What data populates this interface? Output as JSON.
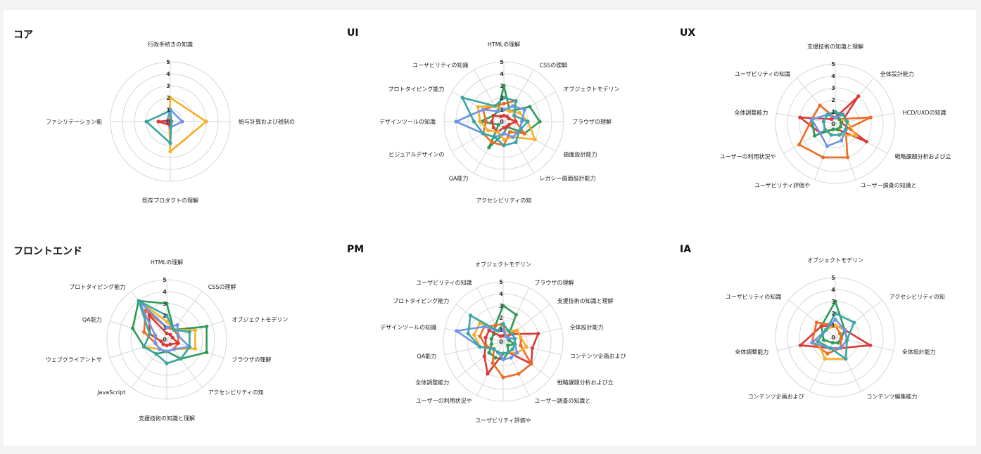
{
  "colors": {
    "yellow": "#f5b027",
    "green": "#2f9a55",
    "red": "#d93a36",
    "teal": "#39a6a4",
    "blue": "#6e94e8",
    "orange": "#ef6a24",
    "grid": "#d6d6d6"
  },
  "chart_data": [
    {
      "type": "radar",
      "title": "コア",
      "axes": [
        "行政手続きの知識",
        "給与計算および税制の",
        "既存プロダクトの理解",
        "ファシリテーション能"
      ],
      "rmax": 5,
      "ticks": [
        "0",
        "1",
        "2",
        "3",
        "4",
        "5"
      ],
      "series": [
        {
          "color": "yellow",
          "values": [
            2.0,
            3.0,
            2.5,
            0.1
          ]
        },
        {
          "color": "blue",
          "values": [
            1.0,
            1.0,
            0.5,
            0.3
          ]
        },
        {
          "color": "red",
          "values": [
            0.1,
            0.1,
            0.3,
            1.0
          ]
        },
        {
          "color": "teal",
          "values": [
            0.9,
            0.1,
            1.8,
            2.0
          ]
        }
      ]
    },
    {
      "type": "radar",
      "title": "UI",
      "axes": [
        "HTMLの理解",
        "CSSの理解",
        "オブジェクトモデリン",
        "ブラウザの理解",
        "画面設計能力",
        "レガシー画面設計能力",
        "アクセシビリティの知",
        "QA能力",
        "ビジュアルデザインの",
        "デザインツールの知識",
        "プロトタイピング能力",
        "ユーザビリティの知識"
      ],
      "rmax": 5,
      "ticks": [
        "0",
        "1",
        "2",
        "3",
        "4",
        "5"
      ],
      "series": [
        {
          "color": "green",
          "values": [
            3.0,
            1.0,
            2.5,
            3.0,
            2.0,
            0.5,
            1.0,
            2.5,
            0.5,
            2.0,
            1.0,
            1.0
          ]
        },
        {
          "color": "orange",
          "values": [
            1.5,
            2.0,
            1.0,
            1.0,
            2.0,
            1.0,
            2.0,
            2.0,
            2.0,
            1.5,
            2.0,
            1.5
          ]
        },
        {
          "color": "red",
          "values": [
            0.5,
            0.5,
            0.5,
            1.0,
            0.5,
            0.5,
            0.5,
            1.0,
            1.0,
            1.0,
            1.0,
            0.5
          ]
        },
        {
          "color": "yellow",
          "values": [
            1.0,
            1.0,
            1.5,
            2.0,
            3.0,
            1.5,
            1.5,
            1.0,
            1.5,
            2.0,
            2.5,
            1.5
          ]
        },
        {
          "color": "blue",
          "values": [
            1.0,
            1.5,
            2.0,
            1.5,
            1.5,
            1.5,
            1.0,
            1.5,
            2.0,
            4.0,
            2.0,
            1.0
          ]
        },
        {
          "color": "teal",
          "values": [
            2.0,
            2.0,
            1.0,
            2.0,
            1.5,
            2.0,
            2.0,
            1.5,
            2.0,
            2.5,
            4.0,
            1.5
          ]
        }
      ]
    },
    {
      "type": "radar",
      "title": "UX",
      "axes": [
        "支援技術の知識と理解",
        "全体設計能力",
        "HCD/UXDの知識",
        "戦略課題分析および立",
        "ユーザー調査の知識と",
        "ユーザビリティ評価や",
        "ユーザーの利用状況や",
        "全体調整能力",
        "ユーザビリティの知識"
      ],
      "rmax": 5,
      "ticks": [
        "0",
        "1",
        "2",
        "3",
        "4",
        "5"
      ],
      "series": [
        {
          "color": "red",
          "values": [
            0.5,
            3.0,
            0.5,
            3.0,
            0.5,
            0.5,
            1.5,
            3.0,
            0.5
          ]
        },
        {
          "color": "orange",
          "values": [
            0.5,
            0.5,
            3.0,
            1.0,
            3.0,
            3.0,
            3.5,
            2.0,
            2.0
          ]
        },
        {
          "color": "yellow",
          "values": [
            1.0,
            0.5,
            1.0,
            2.0,
            1.0,
            1.0,
            1.0,
            1.0,
            1.0
          ]
        },
        {
          "color": "green",
          "values": [
            1.0,
            0.5,
            0.5,
            0.5,
            0.5,
            0.5,
            2.0,
            2.0,
            1.0
          ]
        },
        {
          "color": "blue",
          "values": [
            0.5,
            1.0,
            1.0,
            1.0,
            1.5,
            2.0,
            1.5,
            2.0,
            1.0
          ]
        },
        {
          "color": "teal",
          "values": [
            1.0,
            1.0,
            1.0,
            1.0,
            1.0,
            1.0,
            1.0,
            1.0,
            1.0
          ]
        }
      ]
    },
    {
      "type": "radar",
      "title": "フロントエンド",
      "axes": [
        "HTMLの理解",
        "CSSの理解",
        "オブジェクトモデリン",
        "ブラウザの理解",
        "アクセシビリティの知",
        "支援技術の知識と理解",
        "JavaScript",
        "ウェブクライアントサ",
        "QA能力",
        "プロトタイピング能力"
      ],
      "rmax": 5,
      "ticks": [
        "0",
        "1",
        "2",
        "3",
        "4",
        "5"
      ],
      "series": [
        {
          "color": "green",
          "values": [
            3.0,
            1.0,
            3.5,
            3.5,
            2.0,
            1.0,
            1.5,
            2.0,
            3.0,
            4.0
          ]
        },
        {
          "color": "yellow",
          "values": [
            1.5,
            1.0,
            2.5,
            2.5,
            1.0,
            1.0,
            1.0,
            2.0,
            1.5,
            4.0
          ]
        },
        {
          "color": "orange",
          "values": [
            1.0,
            1.0,
            1.0,
            1.0,
            1.0,
            1.0,
            1.0,
            1.0,
            2.0,
            3.0
          ]
        },
        {
          "color": "red",
          "values": [
            0.5,
            0.5,
            0.5,
            1.0,
            0.5,
            0.5,
            0.5,
            0.5,
            1.5,
            2.5
          ]
        },
        {
          "color": "blue",
          "values": [
            1.0,
            1.5,
            1.0,
            2.0,
            1.0,
            1.0,
            1.0,
            1.0,
            1.0,
            4.0
          ]
        },
        {
          "color": "teal",
          "values": [
            2.0,
            1.0,
            2.0,
            2.0,
            2.0,
            2.0,
            1.5,
            2.0,
            1.5,
            4.0
          ]
        }
      ]
    },
    {
      "type": "radar",
      "title": "PM",
      "axes": [
        "オブジェクトモデリン",
        "ブラウザの理解",
        "支援技術の知識と理解",
        "全体設計能力",
        "コンテンツ企画および",
        "戦略課題分析および立",
        "ユーザー調査の知識と",
        "ユーザビリティ評価や",
        "ユーザーの利用状況や",
        "全体調整能力",
        "QA能力",
        "デザインツールの知識",
        "プロトタイピング能力",
        "ユーザビリティの知識"
      ],
      "rmax": 5,
      "ticks": [
        "0",
        "1",
        "2",
        "3",
        "4",
        "5"
      ],
      "series": [
        {
          "color": "green",
          "values": [
            3.0,
            2.5,
            0.5,
            0.5,
            1.0,
            0.5,
            1.0,
            1.5,
            1.5,
            1.5,
            1.0,
            1.0,
            1.0,
            1.5
          ]
        },
        {
          "color": "red",
          "values": [
            0.5,
            0.5,
            1.0,
            3.0,
            2.5,
            3.0,
            1.0,
            1.0,
            3.0,
            2.0,
            1.5,
            1.5,
            1.5,
            0.5
          ]
        },
        {
          "color": "orange",
          "values": [
            1.5,
            0.5,
            1.5,
            1.5,
            1.5,
            3.0,
            3.0,
            3.0,
            2.0,
            1.0,
            1.5,
            2.0,
            2.0,
            1.5
          ]
        },
        {
          "color": "yellow",
          "values": [
            1.0,
            1.0,
            1.5,
            1.5,
            2.0,
            1.5,
            1.0,
            1.0,
            1.0,
            1.0,
            2.0,
            2.5,
            2.5,
            1.0
          ]
        },
        {
          "color": "blue",
          "values": [
            1.0,
            0.5,
            0.5,
            1.0,
            1.0,
            1.5,
            1.5,
            1.5,
            1.0,
            1.0,
            2.0,
            4.0,
            2.0,
            1.0
          ]
        },
        {
          "color": "teal",
          "values": [
            1.5,
            1.0,
            1.0,
            1.0,
            1.0,
            1.0,
            1.0,
            1.0,
            1.0,
            1.0,
            2.0,
            3.0,
            3.5,
            1.0
          ]
        }
      ]
    },
    {
      "type": "radar",
      "title": "IA",
      "axes": [
        "オブジェクトモデリン",
        "アクセシビリティの知",
        "全体設計能力",
        "コンテンツ編集能力",
        "コンテンツ企画および",
        "全体調整能力",
        "ユーザビリティの知識"
      ],
      "rmax": 5,
      "ticks": [
        "0",
        "1",
        "2",
        "3",
        "4",
        "5"
      ],
      "series": [
        {
          "color": "green",
          "values": [
            3.0,
            1.0,
            0.5,
            0.5,
            0.5,
            1.0,
            1.5
          ]
        },
        {
          "color": "red",
          "values": [
            1.0,
            1.0,
            3.0,
            1.0,
            1.0,
            3.0,
            1.5
          ]
        },
        {
          "color": "orange",
          "values": [
            1.0,
            0.5,
            0.5,
            1.0,
            1.5,
            2.0,
            2.0
          ]
        },
        {
          "color": "yellow",
          "values": [
            1.0,
            1.0,
            1.0,
            2.0,
            2.0,
            1.5,
            1.0
          ]
        },
        {
          "color": "blue",
          "values": [
            1.5,
            1.0,
            1.0,
            1.0,
            1.0,
            2.0,
            1.0
          ]
        },
        {
          "color": "teal",
          "values": [
            2.0,
            2.0,
            1.0,
            2.0,
            1.0,
            1.5,
            1.0
          ]
        }
      ]
    }
  ]
}
